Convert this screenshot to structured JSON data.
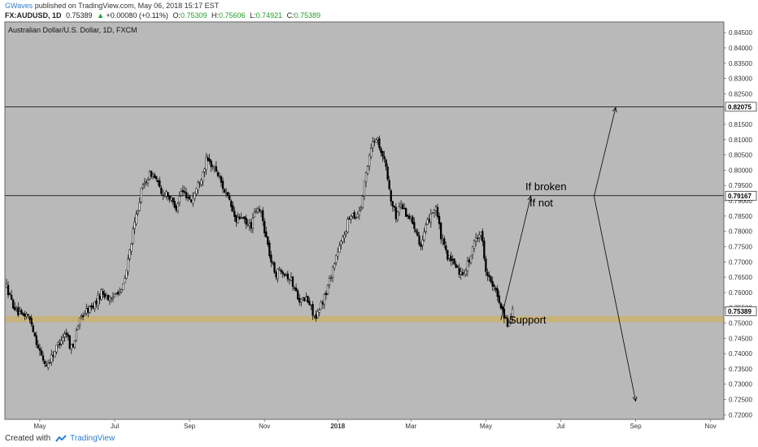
{
  "header": {
    "user": "GWaves",
    "published_text": "published on TradingView.com, May 06, 2018 15:17 EST",
    "symbol": "FX:AUDUSD, 1D",
    "last": "0.75389",
    "change": "+0.00080 (+0.11%)",
    "o_label": "O:",
    "o_value": "0.75309",
    "h_label": "H:",
    "h_value": "0.75606",
    "l_label": "L:",
    "l_value": "0.74921",
    "c_label": "C:",
    "c_value": "0.75389"
  },
  "footer": {
    "created_with": "Created with",
    "brand": "TradingView"
  },
  "colors": {
    "plot_bg": "#b9b9b9",
    "candle": "#000000",
    "support_band": "#c8b37c",
    "up": "#1f9d2b",
    "brand": "#2a7fd4"
  },
  "chart_data": {
    "type": "candlestick",
    "title": "Australian Dollar/U.S. Dollar, 1D, FXCM",
    "y_ticks": [
      "0.84500",
      "0.84000",
      "0.83500",
      "0.83000",
      "0.82500",
      "0.82000",
      "0.81500",
      "0.81000",
      "0.80500",
      "0.80000",
      "0.79500",
      "0.79000",
      "0.78500",
      "0.78000",
      "0.77500",
      "0.77000",
      "0.76500",
      "0.76000",
      "0.75500",
      "0.75000",
      "0.74500",
      "0.74000",
      "0.73500",
      "0.73000",
      "0.72500",
      "0.72000"
    ],
    "x_ticks": [
      "May",
      "Jul",
      "Sep",
      "Nov",
      "2018",
      "Mar",
      "May",
      "Jul",
      "Sep",
      "Nov"
    ],
    "ylim": [
      0.7185,
      0.8485
    ],
    "horizontal_lines": [
      {
        "value": 0.82075,
        "label": "0.82075"
      },
      {
        "value": 0.79167,
        "label": "0.79167"
      }
    ],
    "current_price": {
      "value": 0.75389,
      "label": "0.75389"
    },
    "support_zone": {
      "low": 0.7503,
      "high": 0.7523,
      "label": "Support"
    },
    "annotations": [
      "If broken",
      "If not"
    ],
    "price_path": [
      [
        0,
        0.762
      ],
      [
        3,
        0.757
      ],
      [
        6,
        0.754
      ],
      [
        9,
        0.752
      ],
      [
        12,
        0.753
      ],
      [
        15,
        0.75
      ],
      [
        18,
        0.744
      ],
      [
        21,
        0.739
      ],
      [
        24,
        0.736
      ],
      [
        27,
        0.739
      ],
      [
        30,
        0.742
      ],
      [
        33,
        0.745
      ],
      [
        36,
        0.747
      ],
      [
        38,
        0.743
      ],
      [
        40,
        0.742
      ],
      [
        42,
        0.748
      ],
      [
        45,
        0.752
      ],
      [
        48,
        0.754
      ],
      [
        51,
        0.755
      ],
      [
        54,
        0.757
      ],
      [
        57,
        0.76
      ],
      [
        60,
        0.759
      ],
      [
        63,
        0.757
      ],
      [
        66,
        0.761
      ],
      [
        69,
        0.76
      ],
      [
        72,
        0.767
      ],
      [
        75,
        0.777
      ],
      [
        78,
        0.785
      ],
      [
        81,
        0.793
      ],
      [
        84,
        0.797
      ],
      [
        87,
        0.799
      ],
      [
        90,
        0.797
      ],
      [
        93,
        0.792
      ],
      [
        96,
        0.793
      ],
      [
        99,
        0.79
      ],
      [
        102,
        0.788
      ],
      [
        105,
        0.793
      ],
      [
        108,
        0.792
      ],
      [
        111,
        0.79
      ],
      [
        114,
        0.794
      ],
      [
        117,
        0.798
      ],
      [
        120,
        0.803
      ],
      [
        123,
        0.802
      ],
      [
        126,
        0.8
      ],
      [
        129,
        0.796
      ],
      [
        132,
        0.792
      ],
      [
        135,
        0.788
      ],
      [
        138,
        0.783
      ],
      [
        141,
        0.785
      ],
      [
        144,
        0.782
      ],
      [
        147,
        0.782
      ],
      [
        150,
        0.787
      ],
      [
        153,
        0.786
      ],
      [
        156,
        0.778
      ],
      [
        159,
        0.77
      ],
      [
        162,
        0.766
      ],
      [
        165,
        0.768
      ],
      [
        168,
        0.766
      ],
      [
        171,
        0.764
      ],
      [
        174,
        0.76
      ],
      [
        177,
        0.757
      ],
      [
        180,
        0.758
      ],
      [
        183,
        0.755
      ],
      [
        186,
        0.751
      ],
      [
        189,
        0.756
      ],
      [
        192,
        0.76
      ],
      [
        195,
        0.766
      ],
      [
        198,
        0.772
      ],
      [
        201,
        0.776
      ],
      [
        204,
        0.781
      ],
      [
        207,
        0.786
      ],
      [
        210,
        0.785
      ],
      [
        213,
        0.788
      ],
      [
        216,
        0.799
      ],
      [
        219,
        0.808
      ],
      [
        222,
        0.811
      ],
      [
        225,
        0.807
      ],
      [
        228,
        0.801
      ],
      [
        231,
        0.79
      ],
      [
        234,
        0.785
      ],
      [
        237,
        0.789
      ],
      [
        240,
        0.786
      ],
      [
        243,
        0.784
      ],
      [
        246,
        0.781
      ],
      [
        249,
        0.775
      ],
      [
        252,
        0.781
      ],
      [
        255,
        0.786
      ],
      [
        258,
        0.788
      ],
      [
        261,
        0.778
      ],
      [
        264,
        0.773
      ],
      [
        267,
        0.77
      ],
      [
        270,
        0.769
      ],
      [
        273,
        0.766
      ],
      [
        276,
        0.768
      ],
      [
        279,
        0.772
      ],
      [
        282,
        0.778
      ],
      [
        285,
        0.78
      ],
      [
        288,
        0.768
      ],
      [
        291,
        0.763
      ],
      [
        294,
        0.76
      ],
      [
        297,
        0.756
      ],
      [
        300,
        0.751
      ],
      [
        302,
        0.749
      ],
      [
        304,
        0.7539
      ]
    ],
    "x_positions": [
      {
        "tick": "May",
        "idx": 20
      },
      {
        "tick": "Jul",
        "idx": 65
      },
      {
        "tick": "Sep",
        "idx": 110
      },
      {
        "tick": "Nov",
        "idx": 155
      },
      {
        "tick": "2018",
        "idx": 199
      },
      {
        "tick": "Mar",
        "idx": 243
      },
      {
        "tick": "May",
        "idx": 288
      },
      {
        "tick": "Jul",
        "idx": 333
      },
      {
        "tick": "Sep",
        "idx": 378
      },
      {
        "tick": "Nov",
        "idx": 423
      }
    ],
    "arrows": [
      {
        "from": [
          297,
          0.751
        ],
        "to": [
          315,
          0.7915
        ]
      },
      {
        "from": [
          353,
          0.7915
        ],
        "to": [
          366,
          0.8205
        ]
      },
      {
        "from": [
          353,
          0.7915
        ],
        "to": [
          378,
          0.7245
        ]
      }
    ]
  }
}
